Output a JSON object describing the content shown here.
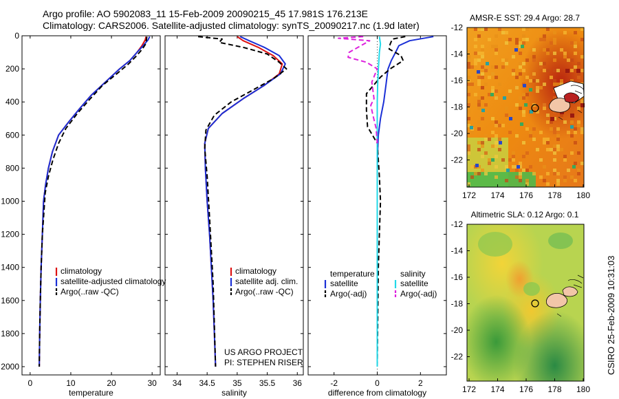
{
  "header": {
    "title_line1": "Argo profile: AO 5902083_11 15-Feb-2009 20090215_45 17.981S 176.213E",
    "title_line2": "Climatology: CARS2006. Satellite-adjusted climatology: synTS_20090217.nc (1.9d later)"
  },
  "side_credit": "CSIRO 25-Feb-2009 10:31:03",
  "colors": {
    "climatology": "#dd1111",
    "satellite": "#1a2fd6",
    "argo": "#000000",
    "satellite_salinity": "#22d8e8",
    "argo_adj_salinity": "#dd22dd"
  },
  "chart_data": [
    {
      "type": "line",
      "id": "temperature",
      "xlabel": "temperature",
      "ylabel": "",
      "xlim": [
        -2,
        32
      ],
      "ylim": [
        0,
        2050
      ],
      "y_reversed": true,
      "xticks": [
        0,
        10,
        20,
        30
      ],
      "yticks": [
        0,
        200,
        400,
        600,
        800,
        1000,
        1200,
        1400,
        1600,
        1800,
        2000
      ],
      "legend": [
        "climatology",
        "satellite-adjusted climatology",
        "Argo(..raw -QC)"
      ],
      "legend_position": "lower-middle",
      "series": [
        {
          "name": "climatology",
          "style": "solid",
          "color": "#dd1111",
          "x": [
            28.5,
            28.3,
            27.5,
            26.3,
            24.5,
            22.0,
            18.5,
            15.0,
            12.2,
            9.5,
            7.0,
            5.5,
            4.5,
            3.8,
            3.3,
            3.0,
            2.7,
            2.5,
            2.35,
            2.25
          ],
          "y": [
            5,
            25,
            60,
            100,
            150,
            200,
            280,
            360,
            440,
            520,
            600,
            700,
            800,
            900,
            1000,
            1200,
            1400,
            1600,
            1800,
            2000
          ]
        },
        {
          "name": "satellite-adjusted climatology",
          "style": "solid",
          "color": "#1a2fd6",
          "x": [
            29.4,
            29.0,
            27.8,
            26.3,
            24.5,
            22.0,
            18.5,
            15.0,
            12.2,
            9.5,
            7.0,
            5.5,
            4.5,
            3.8,
            3.3,
            3.0,
            2.7,
            2.5,
            2.35,
            2.25
          ],
          "y": [
            5,
            25,
            60,
            100,
            150,
            200,
            280,
            360,
            440,
            520,
            600,
            700,
            800,
            900,
            1000,
            1200,
            1400,
            1600,
            1800,
            2000
          ]
        },
        {
          "name": "Argo(..raw -QC)",
          "style": "dashed",
          "color": "#000000",
          "x": [
            28.7,
            28.6,
            28.4,
            27.6,
            26.2,
            24.2,
            21.3,
            17.8,
            14.8,
            11.6,
            8.8,
            7.0,
            5.6,
            4.5,
            3.7,
            3.3,
            3.0,
            2.7,
            2.5,
            2.35,
            2.25
          ],
          "y": [
            5,
            25,
            50,
            80,
            120,
            170,
            230,
            300,
            380,
            470,
            560,
            650,
            750,
            850,
            950,
            1100,
            1200,
            1400,
            1600,
            1800,
            2000
          ]
        }
      ]
    },
    {
      "type": "line",
      "id": "salinity",
      "xlabel": "salinity",
      "ylabel": "",
      "xlim": [
        33.8,
        36.1
      ],
      "ylim": [
        0,
        2050
      ],
      "y_reversed": true,
      "xticks": [
        34,
        34.5,
        35,
        35.5,
        36
      ],
      "legend": [
        "climatology",
        "satellite adj. clim.",
        "Argo(..raw -QC)"
      ],
      "legend_position": "lower-right",
      "annotations": [
        "US ARGO PROJECT",
        "PI: STEPHEN RISER"
      ],
      "series": [
        {
          "name": "climatology",
          "style": "solid",
          "color": "#dd1111",
          "x": [
            35.0,
            35.1,
            35.35,
            35.6,
            35.75,
            35.7,
            35.45,
            35.1,
            34.75,
            34.52,
            34.46,
            34.47,
            34.5,
            34.54,
            34.57,
            34.6,
            34.62,
            34.64
          ],
          "y": [
            5,
            30,
            70,
            120,
            170,
            230,
            300,
            380,
            470,
            560,
            650,
            800,
            1000,
            1200,
            1400,
            1600,
            1800,
            2000
          ]
        },
        {
          "name": "satellite adj. clim.",
          "style": "solid",
          "color": "#1a2fd6",
          "x": [
            35.05,
            35.2,
            35.45,
            35.7,
            35.8,
            35.72,
            35.45,
            35.1,
            34.75,
            34.52,
            34.46,
            34.47,
            34.5,
            34.54,
            34.57,
            34.6,
            34.62,
            34.64
          ],
          "y": [
            5,
            30,
            70,
            120,
            170,
            230,
            300,
            380,
            470,
            560,
            650,
            800,
            1000,
            1200,
            1400,
            1600,
            1800,
            2000
          ]
        },
        {
          "name": "Argo(..raw -QC)",
          "style": "dashed",
          "color": "#000000",
          "x": [
            34.35,
            34.75,
            34.7,
            35.1,
            35.5,
            35.7,
            35.82,
            35.6,
            35.25,
            34.9,
            34.62,
            34.48,
            34.46,
            34.5,
            34.54,
            34.57,
            34.6,
            34.62,
            34.64
          ],
          "y": [
            5,
            20,
            40,
            70,
            110,
            160,
            200,
            260,
            330,
            400,
            480,
            570,
            680,
            850,
            1100,
            1300,
            1500,
            1750,
            2000
          ]
        }
      ]
    },
    {
      "type": "line",
      "id": "difference",
      "xlabel": "difference from climatology",
      "ylabel": "",
      "xlim": [
        -3.2,
        3.2
      ],
      "ylim": [
        0,
        2050
      ],
      "y_reversed": true,
      "xticks": [
        -2,
        0,
        2
      ],
      "legend_headers": [
        "temperature",
        "salinity"
      ],
      "legend": [
        "satellite",
        "Argo(-adj)",
        "satellite",
        "Argo(-adj)"
      ],
      "legend_position": "lower-middle",
      "series": [
        {
          "name": "temperature satellite",
          "style": "solid",
          "color": "#1a2fd6",
          "x": [
            2.6,
            1.5,
            1.0,
            0.85,
            0.65,
            0.5,
            0.45,
            0.4,
            0.3,
            0.15,
            0.05,
            0.02,
            0.0,
            0.0,
            0.0,
            0.0
          ],
          "y": [
            5,
            30,
            60,
            100,
            150,
            200,
            250,
            300,
            400,
            500,
            600,
            700,
            800,
            1200,
            1600,
            2000
          ]
        },
        {
          "name": "temperature Argo(-adj)",
          "style": "dashed",
          "color": "#000000",
          "x": [
            1.3,
            0.7,
            0.6,
            0.55,
            1.1,
            1.2,
            0.6,
            0.15,
            -0.5,
            -0.5,
            -0.45,
            0.0,
            0.1,
            0.15,
            0.1,
            0.05,
            0.0
          ],
          "y": [
            5,
            20,
            50,
            80,
            120,
            150,
            200,
            250,
            350,
            450,
            550,
            650,
            850,
            1000,
            1200,
            1400,
            2000
          ]
        },
        {
          "name": "salinity satellite",
          "style": "solid",
          "color": "#22d8e8",
          "x": [
            0.1,
            0.15,
            0.1,
            0.05,
            0.02,
            0.0,
            0.0,
            0.0,
            0.0
          ],
          "y": [
            5,
            50,
            100,
            200,
            300,
            400,
            600,
            1000,
            2000
          ]
        },
        {
          "name": "salinity Argo(-adj)",
          "style": "dashed",
          "color": "#dd22dd",
          "x": [
            -0.65,
            -1.8,
            -0.35,
            -1.3,
            -1.35,
            -0.5,
            0.0,
            -0.25,
            -0.15,
            -0.3,
            -0.2,
            -0.05,
            0.0
          ],
          "y": [
            5,
            15,
            30,
            100,
            130,
            160,
            200,
            280,
            380,
            420,
            480,
            560,
            650
          ]
        }
      ]
    }
  ],
  "maps": [
    {
      "title": "AMSR-E SST: 29.4 Argo: 28.7",
      "xticks": [
        "172",
        "174",
        "176",
        "178",
        "180"
      ],
      "yticks": [
        "-12",
        "-14",
        "-16",
        "-18",
        "-20",
        "-22"
      ],
      "profile_location": {
        "lon": 176.213,
        "lat": -17.981
      }
    },
    {
      "title": "Altimetric SLA: 0.12 Argo: 0.1",
      "xticks": [
        "172",
        "174",
        "176",
        "178",
        "180"
      ],
      "yticks": [
        "-12",
        "-14",
        "-16",
        "-18",
        "-20",
        "-22"
      ],
      "profile_location": {
        "lon": 176.213,
        "lat": -17.981
      }
    }
  ]
}
